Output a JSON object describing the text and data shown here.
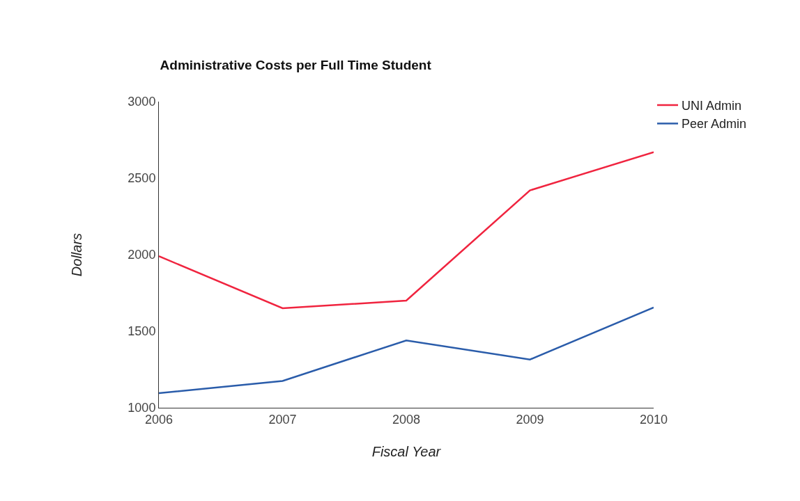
{
  "chart_data": {
    "type": "line",
    "title": "Administrative Costs per Full Time Student",
    "xlabel": "Fiscal Year",
    "ylabel": "Dollars",
    "x": [
      2006,
      2007,
      2008,
      2009,
      2010
    ],
    "series": [
      {
        "name": "UNI Admin",
        "color": "#f0243f",
        "values": [
          1990,
          1650,
          1700,
          2420,
          2670
        ]
      },
      {
        "name": "Peer Admin",
        "color": "#2a5caa",
        "values": [
          1095,
          1175,
          1440,
          1315,
          1655
        ]
      }
    ],
    "xlim": [
      2006,
      2010
    ],
    "xticks": [
      2006,
      2007,
      2008,
      2009,
      2010
    ],
    "ylim": [
      1000,
      3000
    ],
    "yticks": [
      1000,
      1500,
      2000,
      2500,
      3000
    ],
    "legend": "top right",
    "marker": "none",
    "line_style": "solid"
  }
}
